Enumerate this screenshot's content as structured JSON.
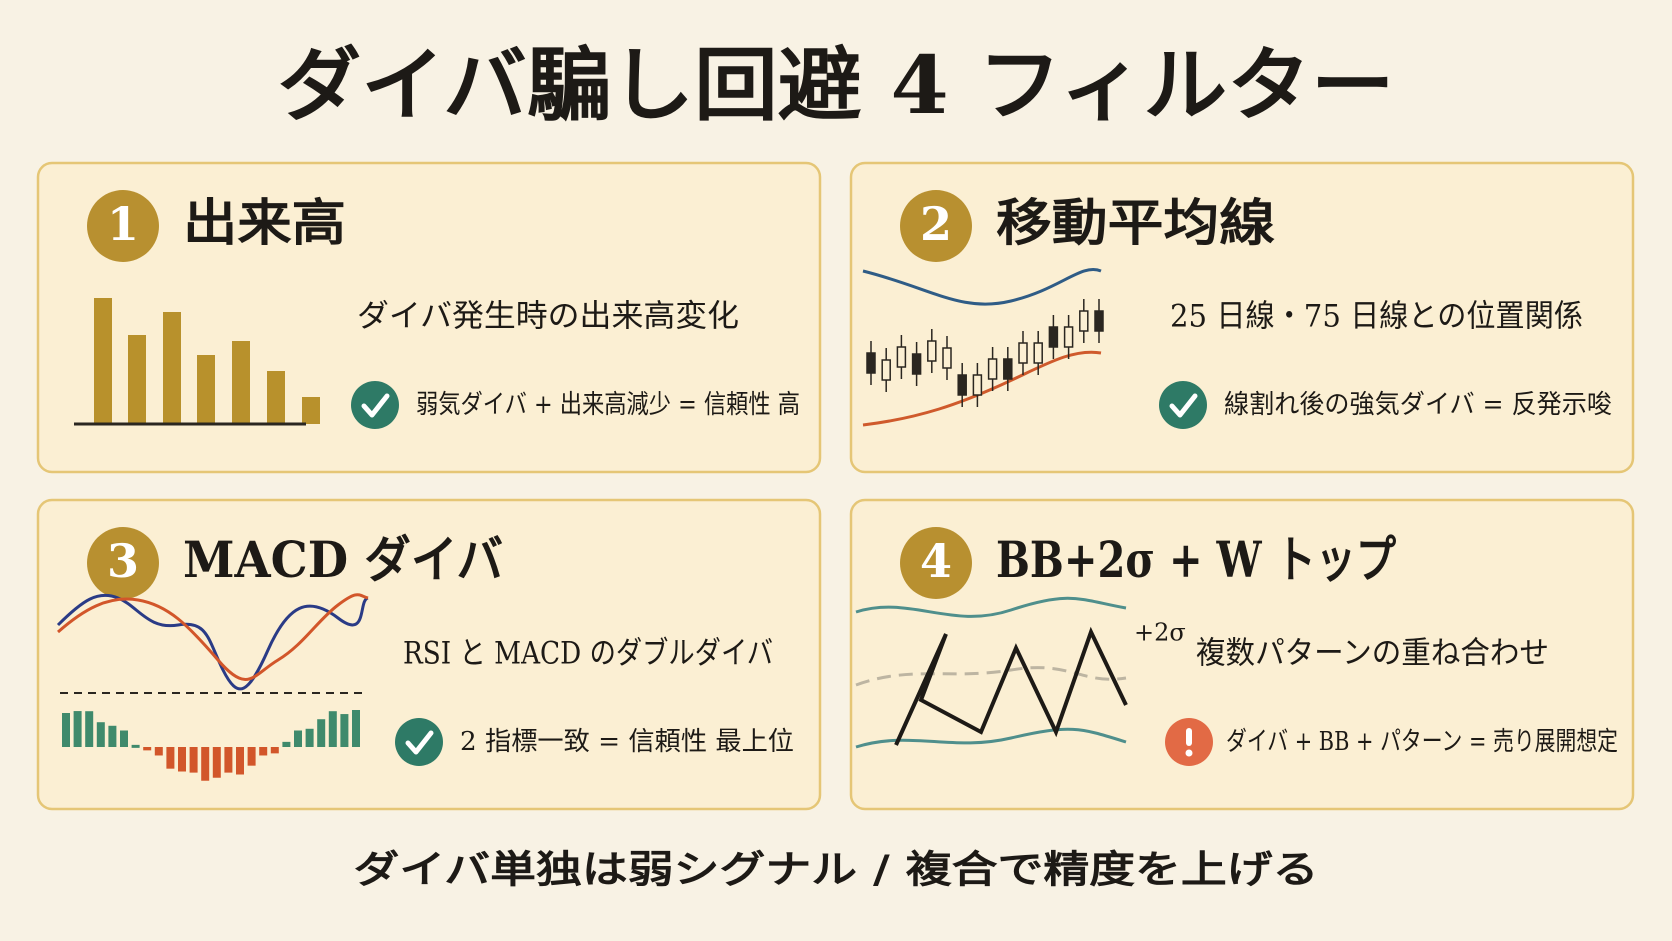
{
  "title": "ダイバ騙し回避 4 フィルター",
  "cards": [
    {
      "number": "1",
      "title": "出来高",
      "description": "ダイバ発生時の出来高変化",
      "point": "弱気ダイバ + 出来高減少 = 信頼性 高"
    },
    {
      "number": "2",
      "title": "移動平均線",
      "description": "25 日線・75 日線との位置関係",
      "point": "線割れ後の強気ダイバ = 反発示唆"
    },
    {
      "number": "3",
      "title": "MACD ダイバ",
      "description": "RSI と MACD のダブルダイバ",
      "point": "2 指標一致 = 信頼性 最上位"
    },
    {
      "number": "4",
      "title": "BB+2σ + W トップ",
      "description": "複数パターンの重ね合わせ",
      "point": "ダイバ + BB + パターン = 売り展開想定",
      "illustration_label": "+2σ"
    }
  ],
  "footer": "ダイバ単独は弱シグナル / 複合で精度を上げる"
}
